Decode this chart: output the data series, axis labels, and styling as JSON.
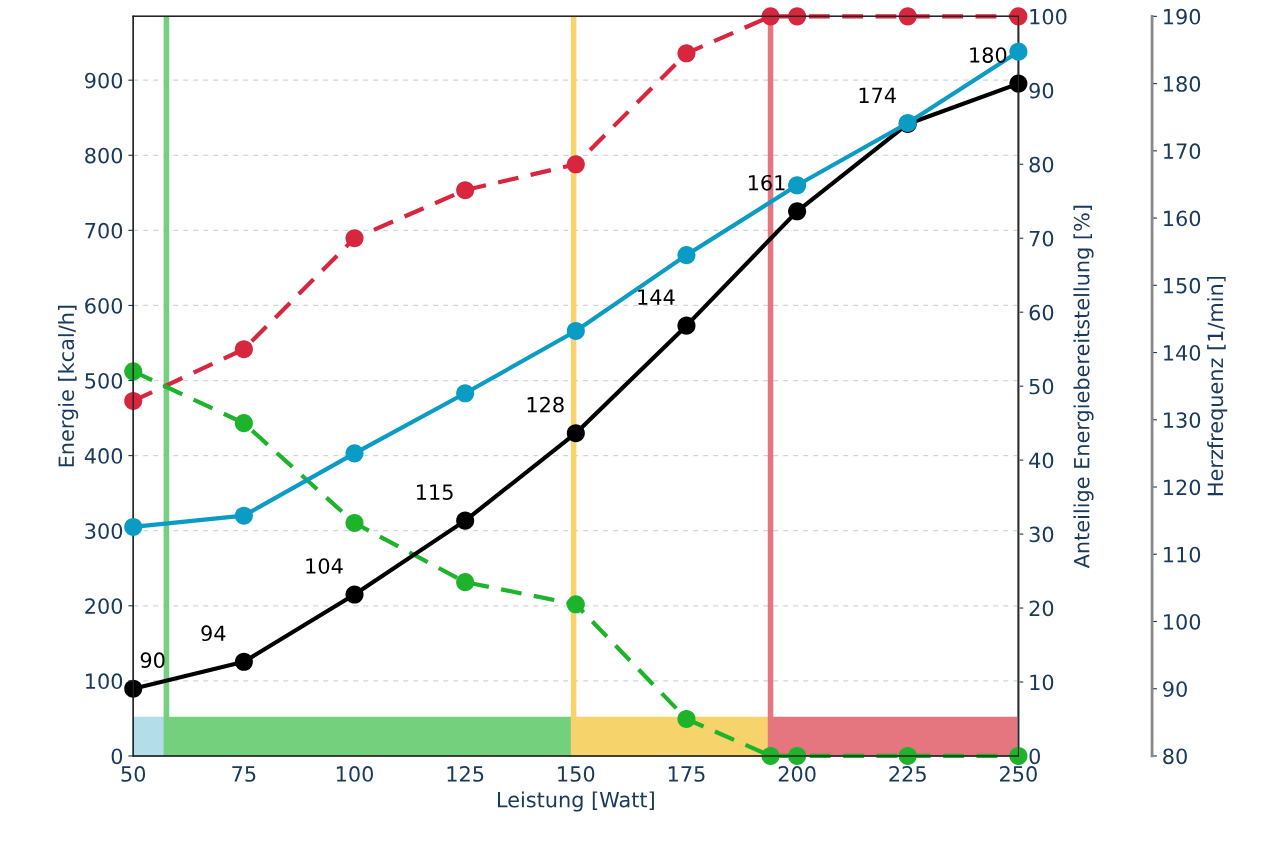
{
  "chart_data": {
    "type": "line",
    "xlabel": "Leistung [Watt]",
    "ylabel": "Energie [kcal/h]",
    "y2label": "Anteilige Energiebereitstellung [%]",
    "y3label": "Herzfrequenz [1/min]",
    "xlim": [
      50,
      250
    ],
    "xticks": [
      50,
      75,
      100,
      125,
      150,
      175,
      200,
      225,
      250
    ],
    "ylim": [
      0,
      985
    ],
    "yticks": [
      0,
      100,
      200,
      300,
      400,
      500,
      600,
      700,
      800,
      900
    ],
    "y2lim": [
      0,
      100
    ],
    "y2ticks": [
      0,
      10,
      20,
      30,
      40,
      50,
      60,
      70,
      80,
      90,
      100
    ],
    "y3lim": [
      80,
      190
    ],
    "y3ticks": [
      80,
      90,
      100,
      110,
      120,
      130,
      140,
      150,
      160,
      170,
      180,
      190
    ],
    "grid": true,
    "marker": "circle",
    "series": [
      {
        "color": "#0a9cc4",
        "line_style": "solid",
        "x": [
          50,
          75,
          100,
          125,
          150,
          175,
          200,
          225,
          250
        ],
        "values": [
          305,
          320,
          403,
          483,
          566,
          667,
          760,
          843,
          938
        ]
      },
      {
        "color": "#d7263d",
        "line_style": "dashed",
        "axis": "y2",
        "x": [
          50,
          75,
          100,
          125,
          150,
          175,
          194,
          200,
          225,
          250
        ],
        "values": [
          48,
          55,
          70,
          76.5,
          80,
          95,
          100,
          100,
          100,
          100
        ]
      },
      {
        "color": "#1db32a",
        "line_style": "dashed",
        "axis": "y2",
        "x": [
          50,
          75,
          100,
          125,
          150,
          175,
          194,
          200,
          225,
          250
        ],
        "values": [
          52,
          45,
          31.5,
          23.5,
          20.5,
          5,
          0,
          0,
          0,
          0
        ]
      },
      {
        "color": "#000000",
        "line_style": "solid",
        "axis": "y3",
        "x": [
          50,
          75,
          100,
          125,
          150,
          175,
          200,
          225,
          250
        ],
        "values": [
          90,
          94,
          104,
          115,
          128,
          144,
          161,
          174,
          180
        ],
        "value_labels": [
          "90",
          "94",
          "104",
          "115",
          "128",
          "144",
          "161",
          "174",
          "180"
        ]
      }
    ],
    "ref_lines": [
      {
        "axis": "x",
        "value": 57.5,
        "color": "#74d07c"
      },
      {
        "axis": "x",
        "value": 149.5,
        "color": "#f6d36b"
      },
      {
        "axis": "x",
        "value": 194,
        "color": "#e5767f"
      }
    ],
    "bands": [
      {
        "axis": "x",
        "from": 50,
        "to": 57.5,
        "color": "#b3dde9"
      },
      {
        "axis": "x",
        "from": 57.5,
        "to": 149.5,
        "color": "#74d07c"
      },
      {
        "axis": "x",
        "from": 149.5,
        "to": 194,
        "color": "#f6d36b"
      },
      {
        "axis": "x",
        "from": 194,
        "to": 250,
        "color": "#e5767f"
      }
    ]
  }
}
